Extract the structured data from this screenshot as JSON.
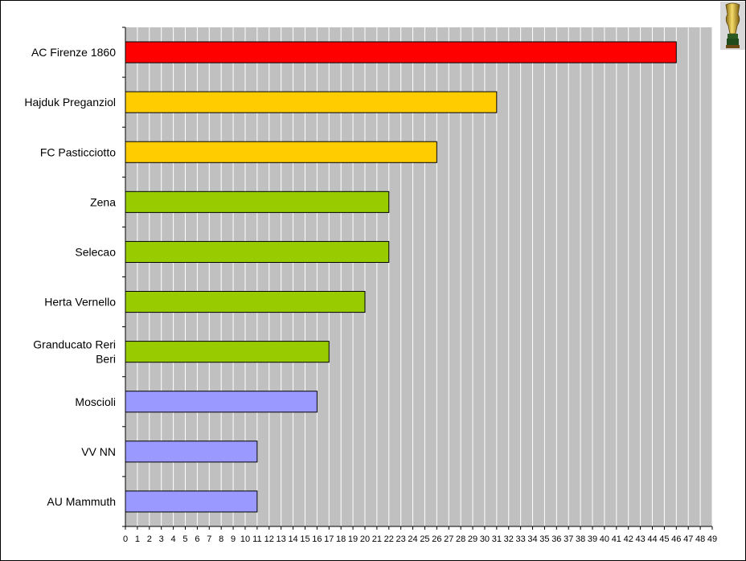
{
  "chart_data": {
    "type": "bar",
    "orientation": "horizontal",
    "title": "",
    "xlabel": "",
    "ylabel": "",
    "categories": [
      "AC Firenze 1860",
      "Hajduk Preganziol",
      "FC Pasticciotto",
      "Zena",
      "Selecao",
      "Herta Vernello",
      "Granducato Reri Beri",
      "Moscioli",
      "VV NN",
      "AU Mammuth"
    ],
    "values": [
      46,
      31,
      26,
      22,
      22,
      20,
      17,
      16,
      11,
      11
    ],
    "bar_colors": [
      "#ff0000",
      "#ffcc00",
      "#ffcc00",
      "#99cc00",
      "#99cc00",
      "#99cc00",
      "#99cc00",
      "#9999ff",
      "#9999ff",
      "#9999ff"
    ],
    "xlim": [
      0,
      49
    ],
    "x_ticks": [
      0,
      1,
      2,
      3,
      4,
      5,
      6,
      7,
      8,
      9,
      10,
      11,
      12,
      13,
      14,
      15,
      16,
      17,
      18,
      19,
      20,
      21,
      22,
      23,
      24,
      25,
      26,
      27,
      28,
      29,
      30,
      31,
      32,
      33,
      34,
      35,
      36,
      37,
      38,
      39,
      40,
      41,
      42,
      43,
      44,
      45,
      46,
      47,
      48,
      49
    ],
    "grid": true,
    "legend": "none",
    "plot_background": "#c0c0c0",
    "gridline_color": "#ffffff"
  },
  "decor": {
    "icon": "trophy-icon"
  }
}
